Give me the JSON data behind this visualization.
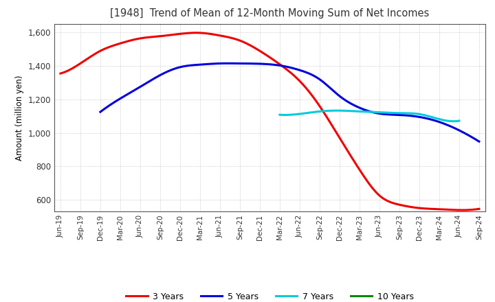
{
  "title": "[1948]  Trend of Mean of 12-Month Moving Sum of Net Incomes",
  "ylabel": "Amount (million yen)",
  "ylim": [
    530,
    1650
  ],
  "yticks": [
    600,
    800,
    1000,
    1200,
    1400,
    1600
  ],
  "ytick_labels": [
    "600",
    "800",
    "1,000",
    "1,200",
    "1,400",
    "1,600"
  ],
  "background_color": "#ffffff",
  "grid_color": "#bbbbbb",
  "x_labels": [
    "Jun-19",
    "Sep-19",
    "Dec-19",
    "Mar-20",
    "Jun-20",
    "Sep-20",
    "Dec-20",
    "Mar-21",
    "Jun-21",
    "Sep-21",
    "Dec-21",
    "Mar-22",
    "Jun-22",
    "Sep-22",
    "Dec-22",
    "Mar-23",
    "Jun-23",
    "Sep-23",
    "Dec-23",
    "Mar-24",
    "Jun-24",
    "Sep-24"
  ],
  "series": {
    "3 Years": {
      "color": "#ee0000",
      "data_x": [
        0,
        1,
        2,
        3,
        4,
        5,
        6,
        7,
        8,
        9,
        10,
        11,
        12,
        13,
        14,
        15,
        16,
        17,
        18,
        19,
        20,
        21
      ],
      "data_y": [
        1355,
        1415,
        1490,
        1535,
        1565,
        1578,
        1592,
        1598,
        1582,
        1552,
        1490,
        1410,
        1310,
        1160,
        970,
        780,
        625,
        570,
        550,
        543,
        538,
        545
      ]
    },
    "5 Years": {
      "color": "#0000dd",
      "data_x": [
        2,
        3,
        4,
        5,
        6,
        7,
        8,
        9,
        10,
        11,
        12,
        13,
        14,
        15,
        16,
        17,
        18,
        19,
        20,
        21
      ],
      "data_y": [
        1125,
        1205,
        1275,
        1345,
        1393,
        1408,
        1415,
        1415,
        1413,
        1403,
        1375,
        1320,
        1220,
        1150,
        1115,
        1107,
        1095,
        1065,
        1015,
        948
      ]
    },
    "7 Years": {
      "color": "#00ccdd",
      "data_x": [
        11,
        12,
        13,
        14,
        15,
        16,
        17,
        18,
        19,
        20
      ],
      "data_y": [
        1108,
        1113,
        1128,
        1133,
        1128,
        1123,
        1118,
        1112,
        1082,
        1072
      ]
    },
    "10 Years": {
      "color": "#008800",
      "data_x": [],
      "data_y": []
    }
  },
  "legend_entries": [
    "3 Years",
    "5 Years",
    "7 Years",
    "10 Years"
  ],
  "legend_colors": [
    "#ee0000",
    "#0000dd",
    "#00ccdd",
    "#008800"
  ],
  "linewidth": 2.2
}
